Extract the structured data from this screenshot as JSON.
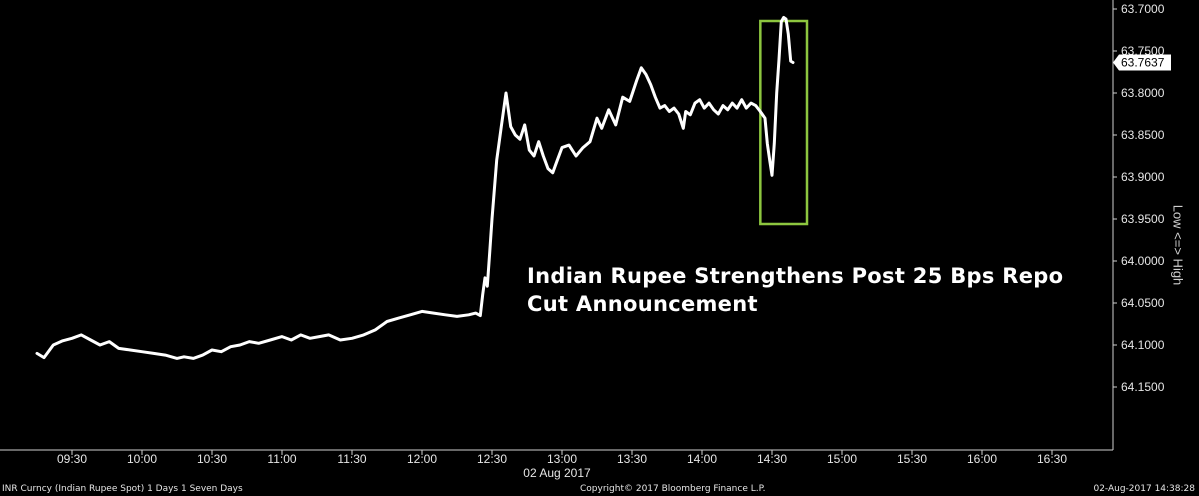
{
  "chart_data": {
    "type": "line",
    "title": "Indian Rupee Strengthens Post 25 Bps Repo Cut Announcement",
    "axis_note": "Low <=> High",
    "y_inverted": true,
    "ylim": [
      63.7,
      64.165
    ],
    "y_ticks": [
      "63.7000",
      "63.7500",
      "63.8000",
      "63.8500",
      "63.9000",
      "63.9500",
      "64.0000",
      "64.0500",
      "64.1000",
      "64.1500"
    ],
    "x_ticks": [
      "09:30",
      "10:00",
      "10:30",
      "11:00",
      "11:30",
      "12:00",
      "12:30",
      "13:00",
      "13:30",
      "14:00",
      "14:30",
      "15:00",
      "15:30",
      "16:00",
      "16:30"
    ],
    "x_date_label": "02 Aug 2017",
    "last_value": "63.7637",
    "highlight": {
      "from": "14:25",
      "to": "14:45",
      "color": "#8dc63f"
    },
    "line_color": "#ffffff",
    "series": [
      {
        "values": [
          [
            "09:15",
            64.11
          ],
          [
            "09:18",
            64.115
          ],
          [
            "09:22",
            64.1
          ],
          [
            "09:26",
            64.095
          ],
          [
            "09:30",
            64.092
          ],
          [
            "09:34",
            64.088
          ],
          [
            "09:38",
            64.094
          ],
          [
            "09:42",
            64.1
          ],
          [
            "09:46",
            64.096
          ],
          [
            "09:50",
            64.104
          ],
          [
            "09:55",
            64.106
          ],
          [
            "10:00",
            64.108
          ],
          [
            "10:05",
            64.11
          ],
          [
            "10:10",
            64.112
          ],
          [
            "10:15",
            64.116
          ],
          [
            "10:18",
            64.114
          ],
          [
            "10:22",
            64.116
          ],
          [
            "10:26",
            64.112
          ],
          [
            "10:30",
            64.106
          ],
          [
            "10:34",
            64.108
          ],
          [
            "10:38",
            64.102
          ],
          [
            "10:42",
            64.1
          ],
          [
            "10:46",
            64.096
          ],
          [
            "10:50",
            64.098
          ],
          [
            "10:55",
            64.094
          ],
          [
            "11:00",
            64.09
          ],
          [
            "11:04",
            64.094
          ],
          [
            "11:08",
            64.088
          ],
          [
            "11:12",
            64.092
          ],
          [
            "11:16",
            64.09
          ],
          [
            "11:20",
            64.088
          ],
          [
            "11:25",
            64.094
          ],
          [
            "11:30",
            64.092
          ],
          [
            "11:35",
            64.088
          ],
          [
            "11:40",
            64.082
          ],
          [
            "11:45",
            64.072
          ],
          [
            "11:50",
            64.068
          ],
          [
            "11:55",
            64.064
          ],
          [
            "12:00",
            64.06
          ],
          [
            "12:05",
            64.062
          ],
          [
            "12:10",
            64.064
          ],
          [
            "12:15",
            64.066
          ],
          [
            "12:20",
            64.064
          ],
          [
            "12:23",
            64.062
          ],
          [
            "12:25",
            64.065
          ],
          [
            "12:26",
            64.04
          ],
          [
            "12:27",
            64.02
          ],
          [
            "12:28",
            64.03
          ],
          [
            "12:29",
            63.99
          ],
          [
            "12:30",
            63.95
          ],
          [
            "12:32",
            63.88
          ],
          [
            "12:34",
            63.84
          ],
          [
            "12:36",
            63.8
          ],
          [
            "12:38",
            63.84
          ],
          [
            "12:40",
            63.85
          ],
          [
            "12:42",
            63.855
          ],
          [
            "12:44",
            63.838
          ],
          [
            "12:46",
            63.868
          ],
          [
            "12:48",
            63.875
          ],
          [
            "12:50",
            63.858
          ],
          [
            "12:52",
            63.875
          ],
          [
            "12:54",
            63.89
          ],
          [
            "12:56",
            63.895
          ],
          [
            "12:58",
            63.88
          ],
          [
            "13:00",
            63.865
          ],
          [
            "13:03",
            63.862
          ],
          [
            "13:06",
            63.875
          ],
          [
            "13:09",
            63.865
          ],
          [
            "13:12",
            63.858
          ],
          [
            "13:15",
            63.83
          ],
          [
            "13:17",
            63.842
          ],
          [
            "13:20",
            63.82
          ],
          [
            "13:23",
            63.838
          ],
          [
            "13:26",
            63.805
          ],
          [
            "13:29",
            63.81
          ],
          [
            "13:32",
            63.785
          ],
          [
            "13:34",
            63.77
          ],
          [
            "13:36",
            63.778
          ],
          [
            "13:38",
            63.79
          ],
          [
            "13:40",
            63.805
          ],
          [
            "13:42",
            63.818
          ],
          [
            "13:44",
            63.815
          ],
          [
            "13:46",
            63.822
          ],
          [
            "13:48",
            63.818
          ],
          [
            "13:50",
            63.825
          ],
          [
            "13:52",
            63.842
          ],
          [
            "13:53",
            63.822
          ],
          [
            "13:55",
            63.826
          ],
          [
            "13:57",
            63.812
          ],
          [
            "13:59",
            63.808
          ],
          [
            "14:01",
            63.818
          ],
          [
            "14:03",
            63.812
          ],
          [
            "14:05",
            63.82
          ],
          [
            "14:07",
            63.825
          ],
          [
            "14:09",
            63.815
          ],
          [
            "14:11",
            63.82
          ],
          [
            "14:13",
            63.812
          ],
          [
            "14:15",
            63.818
          ],
          [
            "14:17",
            63.808
          ],
          [
            "14:19",
            63.818
          ],
          [
            "14:21",
            63.812
          ],
          [
            "14:23",
            63.815
          ],
          [
            "14:25",
            63.822
          ],
          [
            "14:27",
            63.83
          ],
          [
            "14:28",
            63.86
          ],
          [
            "14:29",
            63.88
          ],
          [
            "14:30",
            63.898
          ],
          [
            "14:31",
            63.86
          ],
          [
            "14:32",
            63.8
          ],
          [
            "14:33",
            63.76
          ],
          [
            "14:34",
            63.715
          ],
          [
            "14:35",
            63.71
          ],
          [
            "14:36",
            63.712
          ],
          [
            "14:37",
            63.73
          ],
          [
            "14:38",
            63.762
          ],
          [
            "14:39",
            63.7637
          ]
        ]
      }
    ]
  },
  "footer": {
    "left": "INR Curncy (Indian Rupee Spot) 1 Days 1 Seven Days",
    "center": "Copyright© 2017 Bloomberg Finance L.P.",
    "right": "02-Aug-2017 14:38:28"
  }
}
